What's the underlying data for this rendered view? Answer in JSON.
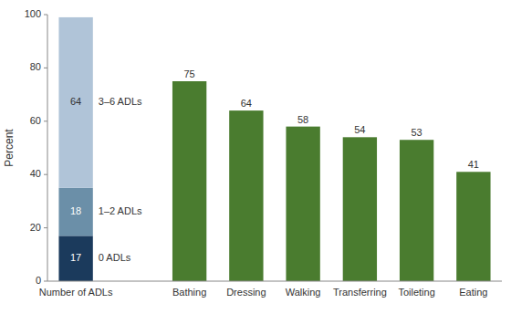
{
  "chart_data": {
    "type": "bar",
    "stacked": true,
    "ylabel": "Percent",
    "categories": [
      "Number of ADLs",
      "Bathing",
      "Dressing",
      "Walking",
      "Transferring",
      "Toileting",
      "Eating"
    ],
    "series": [
      {
        "name": "0 ADLs",
        "color": "#1b3a5c",
        "values": [
          17,
          null,
          null,
          null,
          null,
          null,
          null
        ]
      },
      {
        "name": "1–2 ADLs",
        "color": "#6b8fa8",
        "values": [
          18,
          null,
          null,
          null,
          null,
          null,
          null
        ]
      },
      {
        "name": "3–6 ADLs",
        "color": "#b0c4d8",
        "values": [
          64,
          null,
          null,
          null,
          null,
          null,
          null
        ]
      },
      {
        "color": "#4a7c2f",
        "values": [
          null,
          75,
          64,
          58,
          54,
          53,
          41
        ]
      }
    ],
    "ylim": [
      0,
      100
    ],
    "yticks": [
      0,
      20,
      40,
      60,
      80,
      100
    ],
    "data_labels": true
  }
}
